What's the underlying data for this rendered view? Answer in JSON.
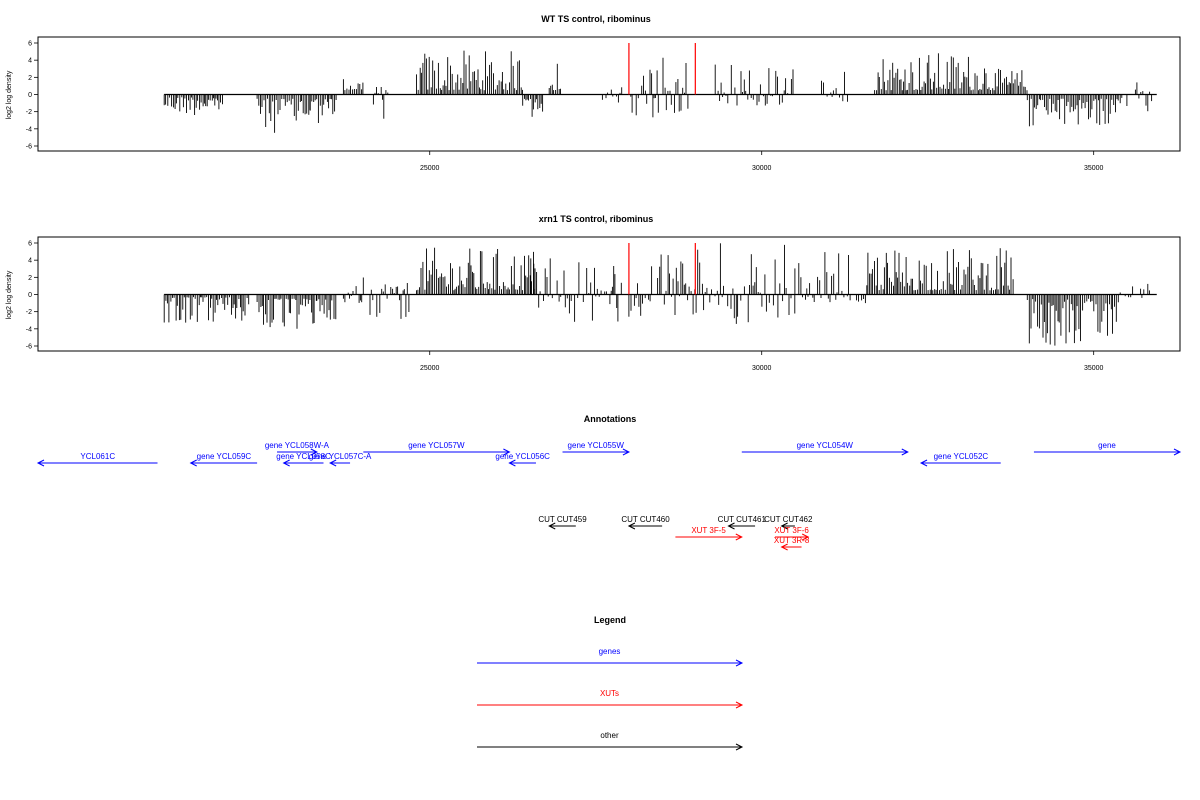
{
  "chart_data": [
    {
      "type": "bar",
      "title": "WT TS control, ribominus",
      "xlabel": "",
      "ylabel": "log2 log density",
      "xlim": [
        19100,
        36300
      ],
      "ylim": [
        -6,
        6
      ],
      "x_ticks": [
        25000,
        30000,
        35000
      ],
      "y_ticks": [
        -6,
        -4,
        -2,
        0,
        2,
        4,
        6
      ],
      "marker_lines": [
        28000,
        29000
      ],
      "marker_color": "#ff0000",
      "bar_color": "#000000",
      "signal_segments": [
        {
          "start": 21000,
          "end": 21900,
          "min": -2.5,
          "max": -0.3
        },
        {
          "start": 22400,
          "end": 23200,
          "min": -4.5,
          "max": -0.5
        },
        {
          "start": 23200,
          "end": 23600,
          "min": -3.5,
          "max": -0.5
        },
        {
          "start": 23700,
          "end": 24000,
          "min": 0.5,
          "max": 2.0
        },
        {
          "start": 24100,
          "end": 24400,
          "min": -3.5,
          "max": 1.0
        },
        {
          "start": 24800,
          "end": 26400,
          "min": 0.5,
          "max": 5.2
        },
        {
          "start": 26400,
          "end": 26700,
          "min": -3.0,
          "max": -0.5
        },
        {
          "start": 26800,
          "end": 27000,
          "min": 0.5,
          "max": 4.0
        },
        {
          "start": 27600,
          "end": 27900,
          "min": -1.0,
          "max": 1.0
        },
        {
          "start": 28000,
          "end": 28900,
          "min": -3.0,
          "max": 4.5
        },
        {
          "start": 29300,
          "end": 30500,
          "min": -1.5,
          "max": 3.5
        },
        {
          "start": 30900,
          "end": 31300,
          "min": -1.0,
          "max": 3.0
        },
        {
          "start": 31700,
          "end": 33500,
          "min": 0.5,
          "max": 5.0
        },
        {
          "start": 33500,
          "end": 34000,
          "min": 0.5,
          "max": 3.0
        },
        {
          "start": 34000,
          "end": 35400,
          "min": -4.0,
          "max": -0.5
        },
        {
          "start": 35400,
          "end": 35900,
          "min": -2.5,
          "max": 1.5
        }
      ]
    },
    {
      "type": "bar",
      "title": "xrn1 TS control, ribominus",
      "xlabel": "",
      "ylabel": "log2 log density",
      "xlim": [
        19100,
        36300
      ],
      "ylim": [
        -6,
        6
      ],
      "x_ticks": [
        25000,
        30000,
        35000
      ],
      "y_ticks": [
        -6,
        -4,
        -2,
        0,
        2,
        4,
        6
      ],
      "marker_lines": [
        28000,
        29000
      ],
      "marker_color": "#ff0000",
      "bar_color": "#000000",
      "signal_segments": [
        {
          "start": 21000,
          "end": 22300,
          "min": -3.5,
          "max": -0.3
        },
        {
          "start": 22400,
          "end": 23300,
          "min": -4.5,
          "max": -0.5
        },
        {
          "start": 23300,
          "end": 23600,
          "min": -3.0,
          "max": -0.5
        },
        {
          "start": 23700,
          "end": 24000,
          "min": -1.0,
          "max": 2.5
        },
        {
          "start": 24100,
          "end": 24700,
          "min": -3.5,
          "max": 1.5
        },
        {
          "start": 24800,
          "end": 26600,
          "min": 0.5,
          "max": 5.5
        },
        {
          "start": 26500,
          "end": 27900,
          "min": -3.5,
          "max": 4.5
        },
        {
          "start": 28000,
          "end": 29300,
          "min": -3.5,
          "max": 5.5
        },
        {
          "start": 29300,
          "end": 30500,
          "min": -3.5,
          "max": 6.0
        },
        {
          "start": 30500,
          "end": 31600,
          "min": -1.0,
          "max": 5.0
        },
        {
          "start": 31600,
          "end": 33800,
          "min": 0.5,
          "max": 5.5
        },
        {
          "start": 34000,
          "end": 35400,
          "min": -6.0,
          "max": -0.5
        },
        {
          "start": 35400,
          "end": 35900,
          "min": -1.0,
          "max": 1.5
        }
      ]
    }
  ],
  "annotations": {
    "title": "Annotations",
    "genes_color": "#0000ff",
    "xuts_color": "#ff0000",
    "other_color": "#000000",
    "genes": [
      {
        "label": "YCL061C",
        "start": 19100,
        "end": 20900,
        "strand": "-",
        "row": 1
      },
      {
        "label": "gene YCL059C",
        "start": 21400,
        "end": 22400,
        "strand": "-",
        "row": 1
      },
      {
        "label": "gene YCL058W-A",
        "start": 22700,
        "end": 23300,
        "strand": "+",
        "row": 0
      },
      {
        "label": "gene YCL058C",
        "start": 22800,
        "end": 23400,
        "strand": "-",
        "row": 1
      },
      {
        "label": "gene YCL057C-A",
        "start": 23500,
        "end": 23800,
        "strand": "-",
        "row": 1
      },
      {
        "label": "gene YCL057W",
        "start": 24000,
        "end": 26200,
        "strand": "+",
        "row": 0
      },
      {
        "label": "gene YCL056C",
        "start": 26200,
        "end": 26600,
        "strand": "-",
        "row": 1
      },
      {
        "label": "gene YCL055W",
        "start": 27000,
        "end": 28000,
        "strand": "+",
        "row": 0
      },
      {
        "label": "gene YCL054W",
        "start": 29700,
        "end": 32200,
        "strand": "+",
        "row": 0
      },
      {
        "label": "gene YCL052C",
        "start": 32400,
        "end": 33600,
        "strand": "-",
        "row": 1
      },
      {
        "label": "gene",
        "start": 34100,
        "end": 36300,
        "strand": "+",
        "row": 0
      }
    ],
    "others": [
      {
        "label": "CUT CUT459",
        "start": 26800,
        "end": 27200,
        "strand": "-",
        "row": 0
      },
      {
        "label": "CUT CUT460",
        "start": 28000,
        "end": 28500,
        "strand": "-",
        "row": 0
      },
      {
        "label": "CUT CUT461",
        "start": 29500,
        "end": 29900,
        "strand": "-",
        "row": 0
      },
      {
        "label": "CUT CUT462",
        "start": 30300,
        "end": 30500,
        "strand": "-",
        "row": 0
      }
    ],
    "xuts": [
      {
        "label": "XUT 3F-5",
        "start": 28700,
        "end": 29700,
        "strand": "+",
        "row": 1
      },
      {
        "label": "XUT 3F-6",
        "start": 30200,
        "end": 30700,
        "strand": "+",
        "row": 1
      },
      {
        "label": "XUT 3R-8",
        "start": 30300,
        "end": 30600,
        "strand": "-",
        "row": 2
      }
    ]
  },
  "legend": {
    "title": "Legend",
    "items": [
      {
        "label": "genes",
        "color": "#0000ff"
      },
      {
        "label": "XUTs",
        "color": "#ff0000"
      },
      {
        "label": "other",
        "color": "#000000"
      }
    ]
  }
}
